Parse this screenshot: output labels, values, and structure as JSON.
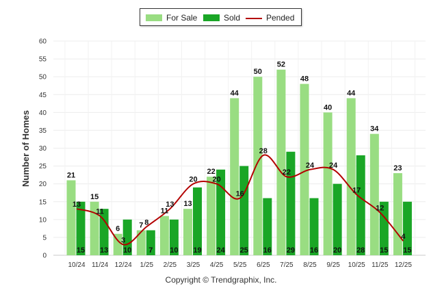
{
  "chart_data": {
    "type": "bar",
    "title": "",
    "xlabel": "",
    "ylabel": "Number of Homes",
    "ylim": [
      0,
      60
    ],
    "yticks": [
      "0",
      "5",
      "10",
      "15",
      "20",
      "25",
      "30",
      "35",
      "40",
      "45",
      "50",
      "55",
      "60"
    ],
    "categories": [
      "10/24",
      "11/24",
      "12/24",
      "1/25",
      "2/25",
      "3/25",
      "4/25",
      "5/25",
      "6/25",
      "7/25",
      "8/25",
      "9/25",
      "10/25",
      "11/25",
      "12/25"
    ],
    "series": [
      {
        "name": "For Sale",
        "kind": "bar",
        "color": "#99dd82",
        "values": [
          21,
          15,
          6,
          7,
          11,
          13,
          22,
          44,
          50,
          52,
          48,
          40,
          44,
          34,
          23
        ]
      },
      {
        "name": "Sold",
        "kind": "bar",
        "color": "#1aa626",
        "values": [
          15,
          13,
          10,
          7,
          10,
          19,
          24,
          25,
          16,
          29,
          16,
          20,
          28,
          15,
          15
        ]
      },
      {
        "name": "Pended",
        "kind": "line",
        "color": "#b30000",
        "values": [
          13,
          11,
          3,
          8,
          13,
          20,
          20,
          16,
          28,
          22,
          24,
          24,
          17,
          12,
          4
        ]
      }
    ],
    "legend_position": "top-center",
    "grid": true
  },
  "legend": {
    "for_sale": "For Sale",
    "sold": "Sold",
    "pended": "Pended"
  },
  "footer": {
    "copyright": "Copyright © Trendgraphix, Inc."
  }
}
